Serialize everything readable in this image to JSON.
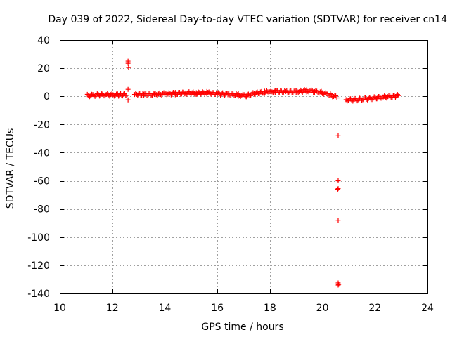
{
  "chart_data": {
    "type": "scatter",
    "title": "Day 039 of 2022, Sidereal Day-to-day VTEC variation (SDTVAR) for receiver cn14",
    "xlabel": "GPS time / hours",
    "ylabel": "SDTVAR / TECUs",
    "xlim": [
      10,
      24
    ],
    "ylim": [
      -140,
      40
    ],
    "xticks": [
      "10",
      "12",
      "14",
      "16",
      "18",
      "20",
      "22",
      "24"
    ],
    "yticks": [
      "40",
      "20",
      "0",
      "-20",
      "-40",
      "-60",
      "-80",
      "-100",
      "-120",
      "-140"
    ],
    "grid": true,
    "marker": "plus",
    "color": "#ff0000",
    "series": [
      {
        "name": "SDTVAR",
        "segments": [
          {
            "x": [
              11.05,
              11.3,
              11.6,
              11.9,
              12.2,
              12.55
            ],
            "y": [
              0.5,
              0.8,
              1.0,
              1.0,
              1.0,
              1.2
            ]
          },
          {
            "x": [
              12.85,
              13.2,
              13.6,
              14.0,
              14.4,
              14.8,
              15.2,
              15.6,
              16.0,
              16.4,
              16.8,
              17.1,
              17.4,
              17.8,
              18.2,
              18.6,
              19.0,
              19.4,
              19.7,
              20.0,
              20.3,
              20.55
            ],
            "y": [
              1.5,
              1.2,
              1.3,
              1.8,
              2.0,
              2.5,
              2.2,
              2.5,
              1.8,
              1.5,
              1.0,
              0.5,
              2.0,
              3.0,
              3.5,
              3.2,
              3.2,
              4.0,
              3.5,
              2.5,
              1.0,
              -0.5
            ]
          },
          {
            "x": [
              20.9,
              21.2,
              21.5,
              21.8,
              22.1,
              22.4,
              22.7,
              22.9
            ],
            "y": [
              -2.5,
              -2.5,
              -2.0,
              -1.5,
              -1.0,
              -0.5,
              0.0,
              0.5
            ]
          }
        ],
        "points_x": [
          12.6,
          12.6,
          12.62,
          12.6,
          12.6,
          20.6,
          20.6,
          20.58,
          20.6,
          20.6,
          20.6,
          20.62,
          20.6
        ],
        "points_y": [
          25,
          23.5,
          20.5,
          5.0,
          -2.5,
          -28,
          -60,
          -66,
          -65.5,
          -88,
          -132.5,
          -133.5,
          -134
        ]
      }
    ]
  }
}
